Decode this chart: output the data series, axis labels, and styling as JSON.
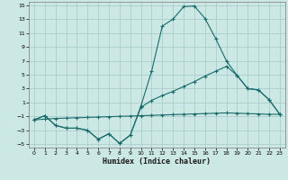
{
  "xlabel": "Humidex (Indice chaleur)",
  "background_color": "#cce8e4",
  "line_color": "#1a6b6b",
  "grid_color": "#aacece",
  "xlim": [
    -0.5,
    23.5
  ],
  "ylim": [
    -5.5,
    15.5
  ],
  "xticks": [
    0,
    1,
    2,
    3,
    4,
    5,
    6,
    7,
    8,
    9,
    10,
    11,
    12,
    13,
    14,
    15,
    16,
    17,
    18,
    19,
    20,
    21,
    22,
    23
  ],
  "yticks": [
    -5,
    -3,
    -1,
    1,
    3,
    5,
    7,
    9,
    11,
    13,
    15
  ],
  "curve1_x": [
    0,
    1,
    2,
    3,
    4,
    5,
    6,
    7,
    8,
    9,
    10,
    11,
    12,
    13,
    14,
    15,
    16,
    17,
    18,
    19,
    20,
    21,
    22,
    23
  ],
  "curve1_y": [
    -1.5,
    -0.9,
    -2.3,
    -2.7,
    -2.7,
    -3.0,
    -4.3,
    -3.5,
    -4.9,
    -3.7,
    0.5,
    5.5,
    12.0,
    13.0,
    14.8,
    14.9,
    13.1,
    10.2,
    7.0,
    4.9,
    3.0,
    2.8,
    1.4,
    -0.7
  ],
  "curve2_x": [
    0,
    1,
    2,
    3,
    4,
    5,
    6,
    7,
    8,
    9,
    10,
    11,
    12,
    13,
    14,
    15,
    16,
    17,
    18,
    19,
    20,
    21,
    22,
    23
  ],
  "curve2_y": [
    -1.5,
    -0.9,
    -2.3,
    -2.7,
    -2.7,
    -3.0,
    -4.3,
    -3.5,
    -4.9,
    -3.7,
    0.3,
    1.3,
    2.0,
    2.6,
    3.3,
    4.0,
    4.8,
    5.5,
    6.2,
    4.9,
    3.0,
    2.8,
    1.4,
    -0.7
  ],
  "curve3_x": [
    0,
    1,
    2,
    3,
    4,
    5,
    6,
    7,
    8,
    9,
    10,
    11,
    12,
    13,
    14,
    15,
    16,
    17,
    18,
    19,
    20,
    21,
    22,
    23
  ],
  "curve3_y": [
    -1.5,
    -1.4,
    -1.3,
    -1.25,
    -1.2,
    -1.15,
    -1.1,
    -1.05,
    -1.0,
    -0.95,
    -0.9,
    -0.85,
    -0.8,
    -0.75,
    -0.7,
    -0.65,
    -0.6,
    -0.55,
    -0.5,
    -0.55,
    -0.6,
    -0.65,
    -0.7,
    -0.7
  ]
}
